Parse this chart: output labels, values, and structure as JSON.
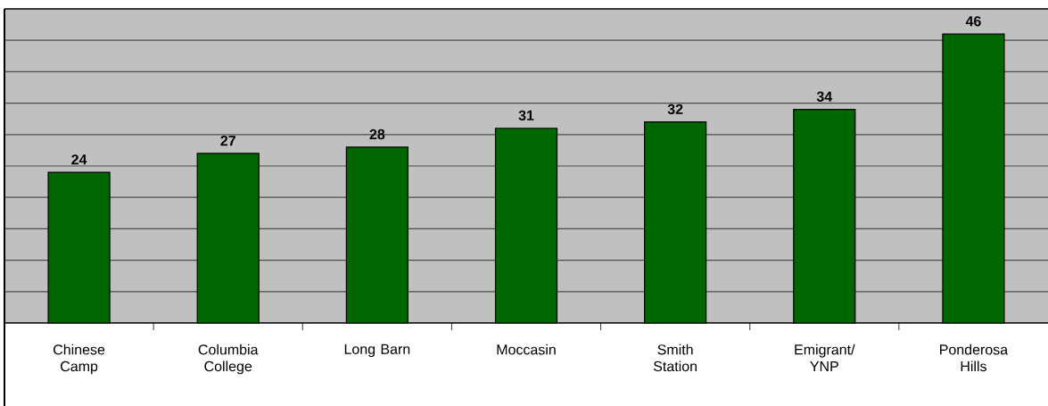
{
  "chart_data": {
    "type": "bar",
    "categories": [
      "Chinese Camp",
      "Columbia College",
      "Long Barn",
      "Moccasin",
      "Smith Station",
      "Emigrant/ YNP",
      "Ponderosa Hills"
    ],
    "values": [
      24,
      27,
      28,
      31,
      32,
      34,
      46
    ],
    "color": "#006600",
    "ylim": [
      0,
      50
    ],
    "yticks": [
      {
        "value": 0,
        "label": null
      },
      {
        "value": 5,
        "label": null
      },
      {
        "value": 10,
        "label": null
      },
      {
        "value": 15,
        "label": null
      },
      {
        "value": 20,
        "label": null
      },
      {
        "value": 25,
        "label": null
      },
      {
        "value": 30,
        "label": null
      },
      {
        "value": 35,
        "label": null
      },
      {
        "value": 40,
        "label": null
      },
      {
        "value": 45,
        "label": null
      },
      {
        "value": 50,
        "label": null
      }
    ],
    "tick_labels": "x",
    "grid": "y",
    "data_labels": true
  }
}
